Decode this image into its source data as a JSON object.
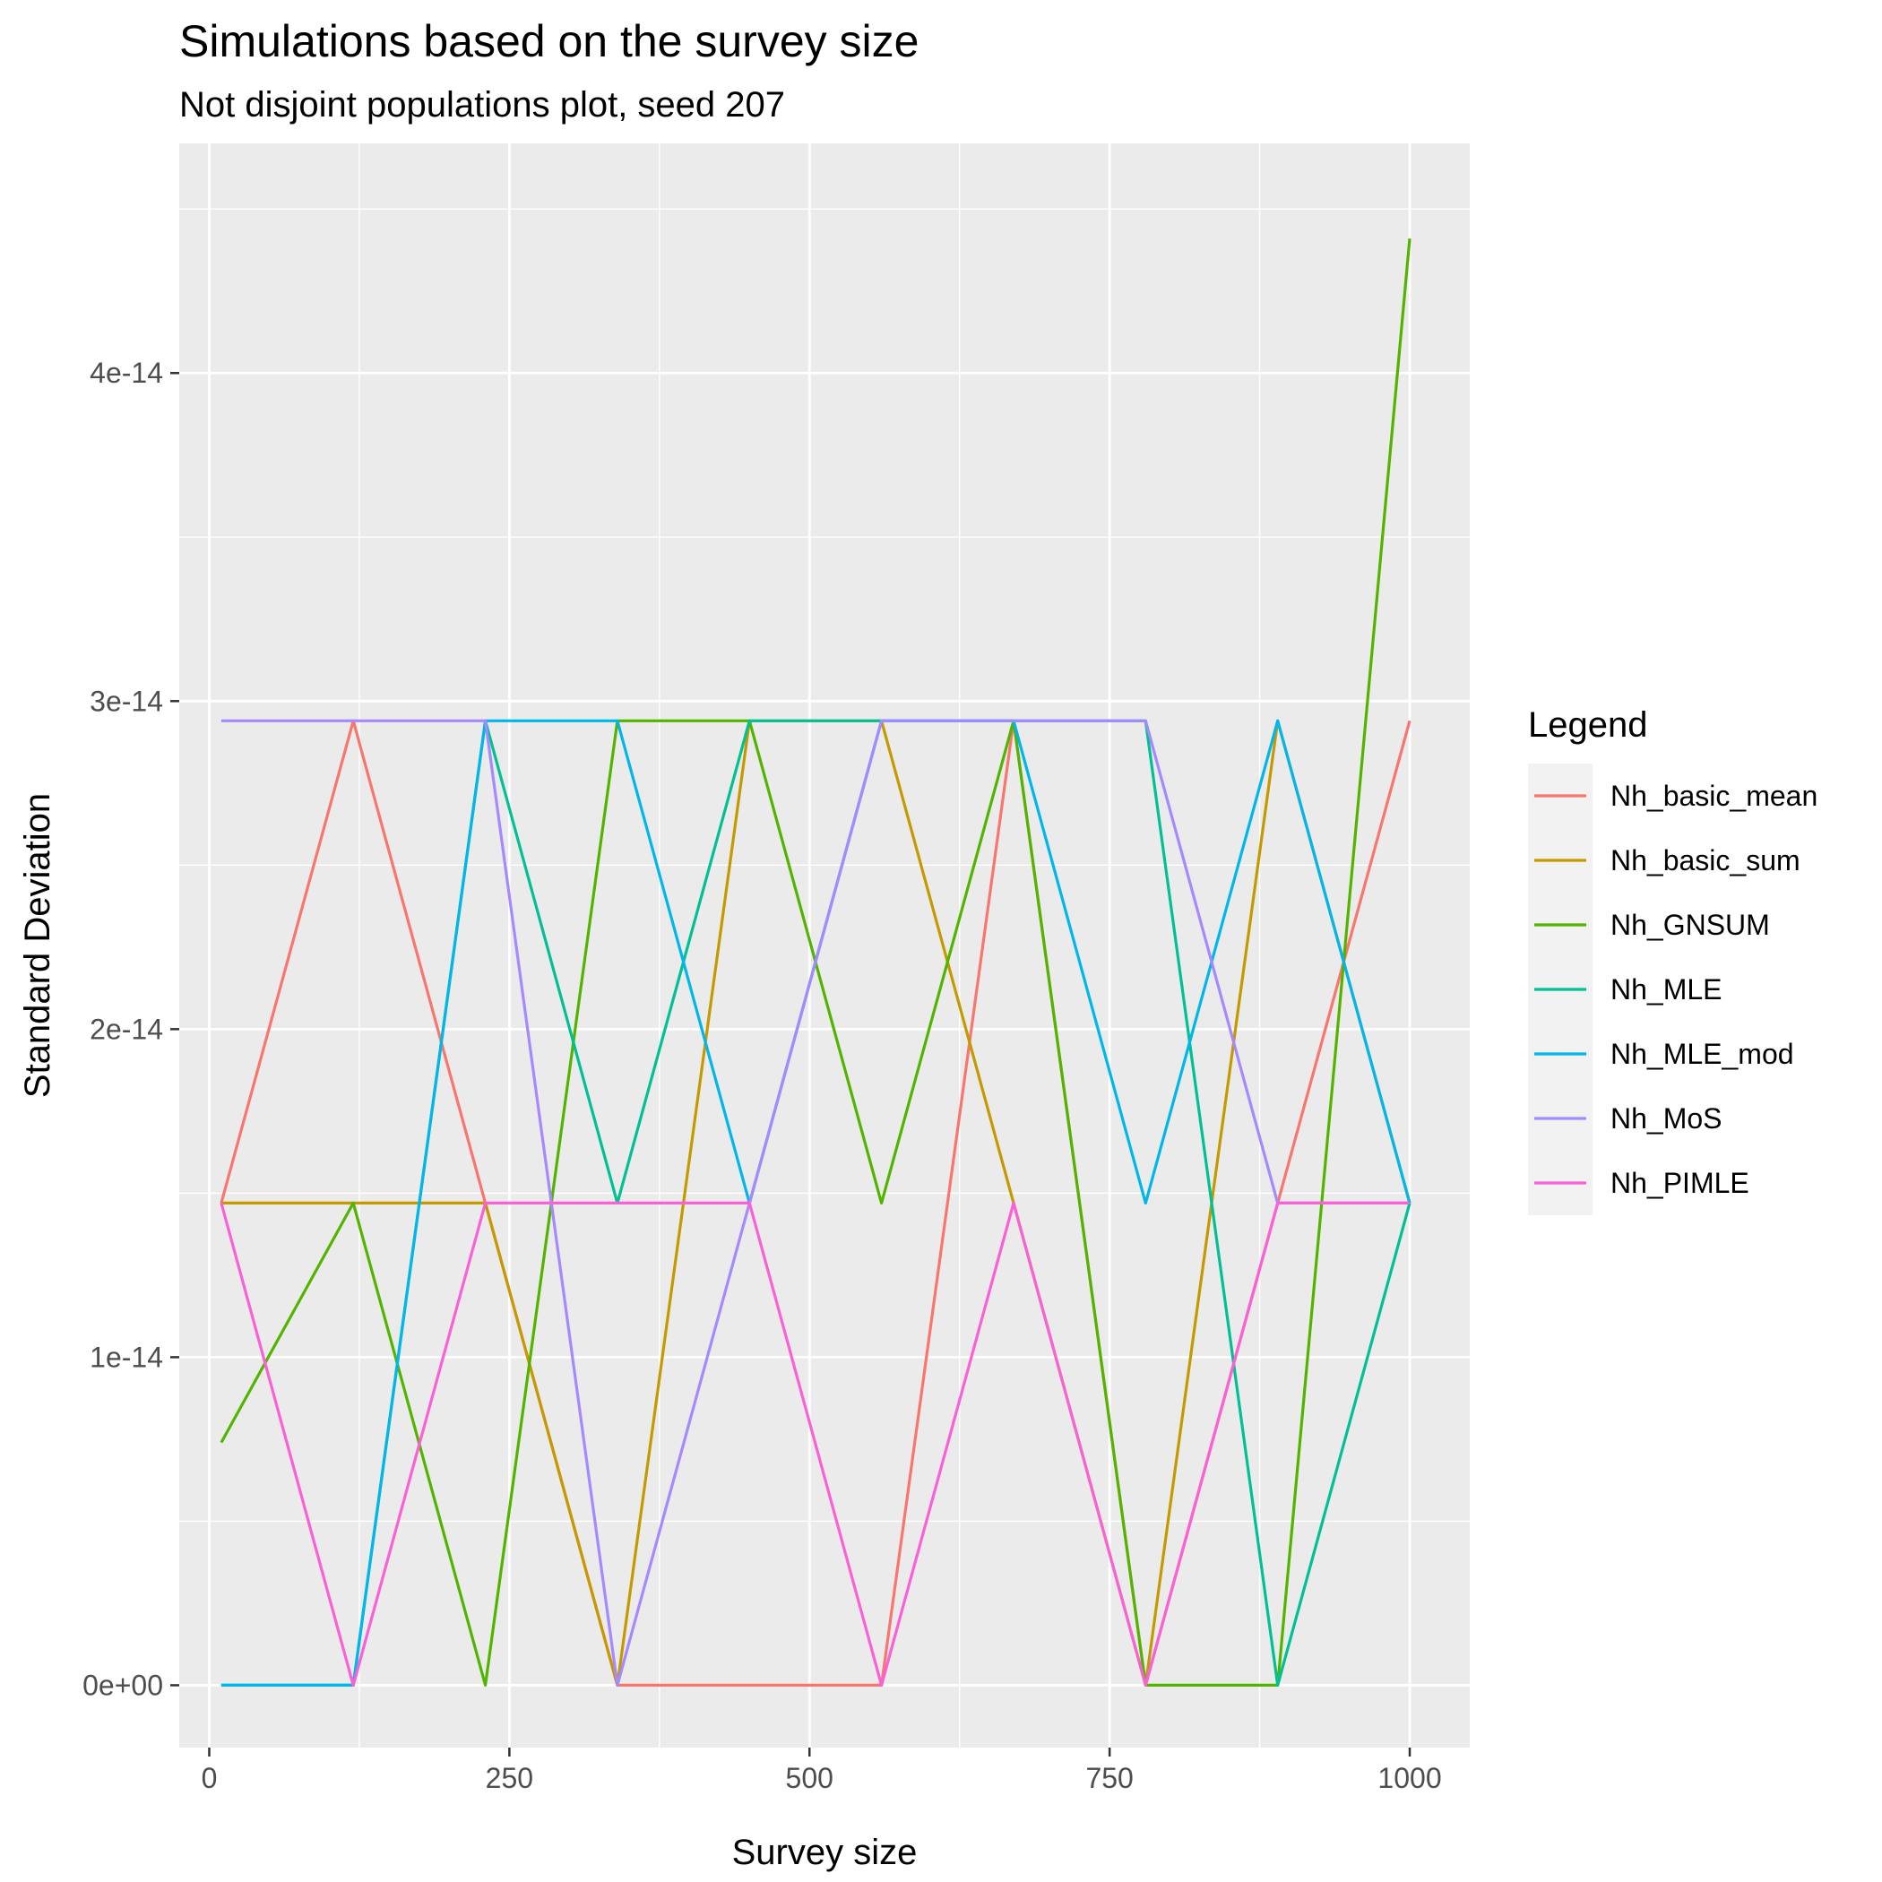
{
  "chart_data": {
    "type": "line",
    "title": "Simulations based on the survey size",
    "subtitle": "Not disjoint populations plot, seed 207",
    "xlabel": "Survey size",
    "ylabel": "Standard Deviation",
    "xlim": [
      -25,
      1050
    ],
    "ylim": [
      -1.9e-15,
      4.7e-14
    ],
    "x_ticks": [
      0,
      250,
      500,
      750,
      1000
    ],
    "x_tick_labels": [
      "0",
      "250",
      "500",
      "750",
      "1000"
    ],
    "y_ticks": [
      0,
      1e-14,
      2e-14,
      3e-14,
      4e-14
    ],
    "y_tick_labels": [
      "0e+00",
      "1e-14",
      "2e-14",
      "3e-14",
      "4e-14"
    ],
    "grid": true,
    "legend": {
      "title": "Legend",
      "position": "right"
    },
    "x": [
      10,
      120,
      230,
      340,
      450,
      560,
      670,
      780,
      890,
      1000
    ],
    "series": [
      {
        "name": "Nh_basic_mean",
        "color": "#F8766D",
        "values": [
          1.47e-14,
          2.94e-14,
          1.47e-14,
          0,
          0,
          0,
          2.94e-14,
          0,
          1.47e-14,
          2.94e-14
        ]
      },
      {
        "name": "Nh_basic_sum",
        "color": "#C49A00",
        "values": [
          1.47e-14,
          1.47e-14,
          1.47e-14,
          0,
          2.94e-14,
          2.94e-14,
          1.47e-14,
          0,
          2.94e-14,
          1.47e-14
        ]
      },
      {
        "name": "Nh_GNSUM",
        "color": "#53B400",
        "values": [
          7.4e-15,
          1.47e-14,
          0,
          2.94e-14,
          2.94e-14,
          1.47e-14,
          2.94e-14,
          0,
          0,
          4.41e-14
        ]
      },
      {
        "name": "Nh_MLE",
        "color": "#00C094",
        "values": [
          0,
          0,
          2.94e-14,
          1.47e-14,
          2.94e-14,
          2.94e-14,
          2.94e-14,
          2.94e-14,
          0,
          1.47e-14
        ]
      },
      {
        "name": "Nh_MLE_mod",
        "color": "#00B6EB",
        "values": [
          0,
          0,
          2.94e-14,
          2.94e-14,
          1.47e-14,
          2.94e-14,
          2.94e-14,
          1.47e-14,
          2.94e-14,
          1.47e-14
        ]
      },
      {
        "name": "Nh_MoS",
        "color": "#A58AFF",
        "values": [
          2.94e-14,
          2.94e-14,
          2.94e-14,
          0,
          1.47e-14,
          2.94e-14,
          2.94e-14,
          2.94e-14,
          1.47e-14,
          1.47e-14
        ]
      },
      {
        "name": "Nh_PIMLE",
        "color": "#FB61D7",
        "values": [
          1.47e-14,
          0,
          1.47e-14,
          1.47e-14,
          1.47e-14,
          0,
          1.47e-14,
          0,
          1.47e-14,
          1.47e-14
        ]
      }
    ]
  }
}
